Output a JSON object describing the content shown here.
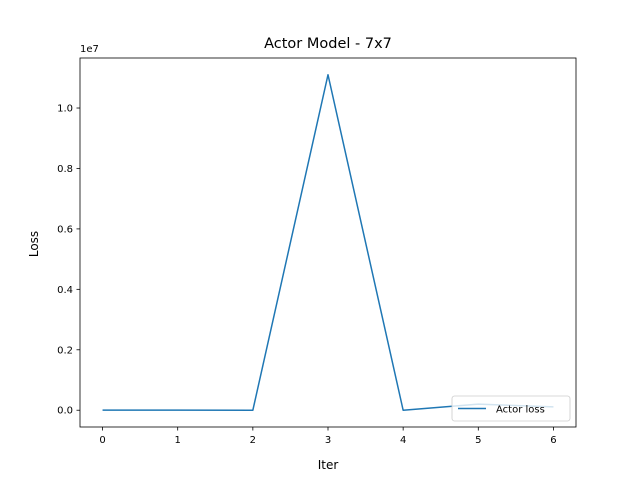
{
  "chart_data": {
    "type": "line",
    "title": "Actor Model - 7x7",
    "xlabel": "Iter",
    "ylabel": "Loss",
    "offset_label": "1e7",
    "x": [
      0,
      1,
      2,
      3,
      4,
      5,
      6
    ],
    "series": [
      {
        "name": "Actor loss",
        "color": "#1f77b4",
        "values": [
          2000,
          5000,
          1000,
          11100000,
          0,
          200000,
          110000
        ]
      }
    ],
    "xlim": [
      -0.3,
      6.3
    ],
    "ylim": [
      -555000,
      11655000
    ],
    "xticks": [
      0,
      1,
      2,
      3,
      4,
      5,
      6
    ],
    "xtick_labels": [
      "0",
      "1",
      "2",
      "3",
      "4",
      "5",
      "6"
    ],
    "yticks": [
      0,
      2000000,
      4000000,
      6000000,
      8000000,
      10000000
    ],
    "ytick_labels": [
      "0.0",
      "0.2",
      "0.4",
      "0.6",
      "0.8",
      "1.0"
    ],
    "grid": false,
    "legend_position": "lower-right"
  }
}
